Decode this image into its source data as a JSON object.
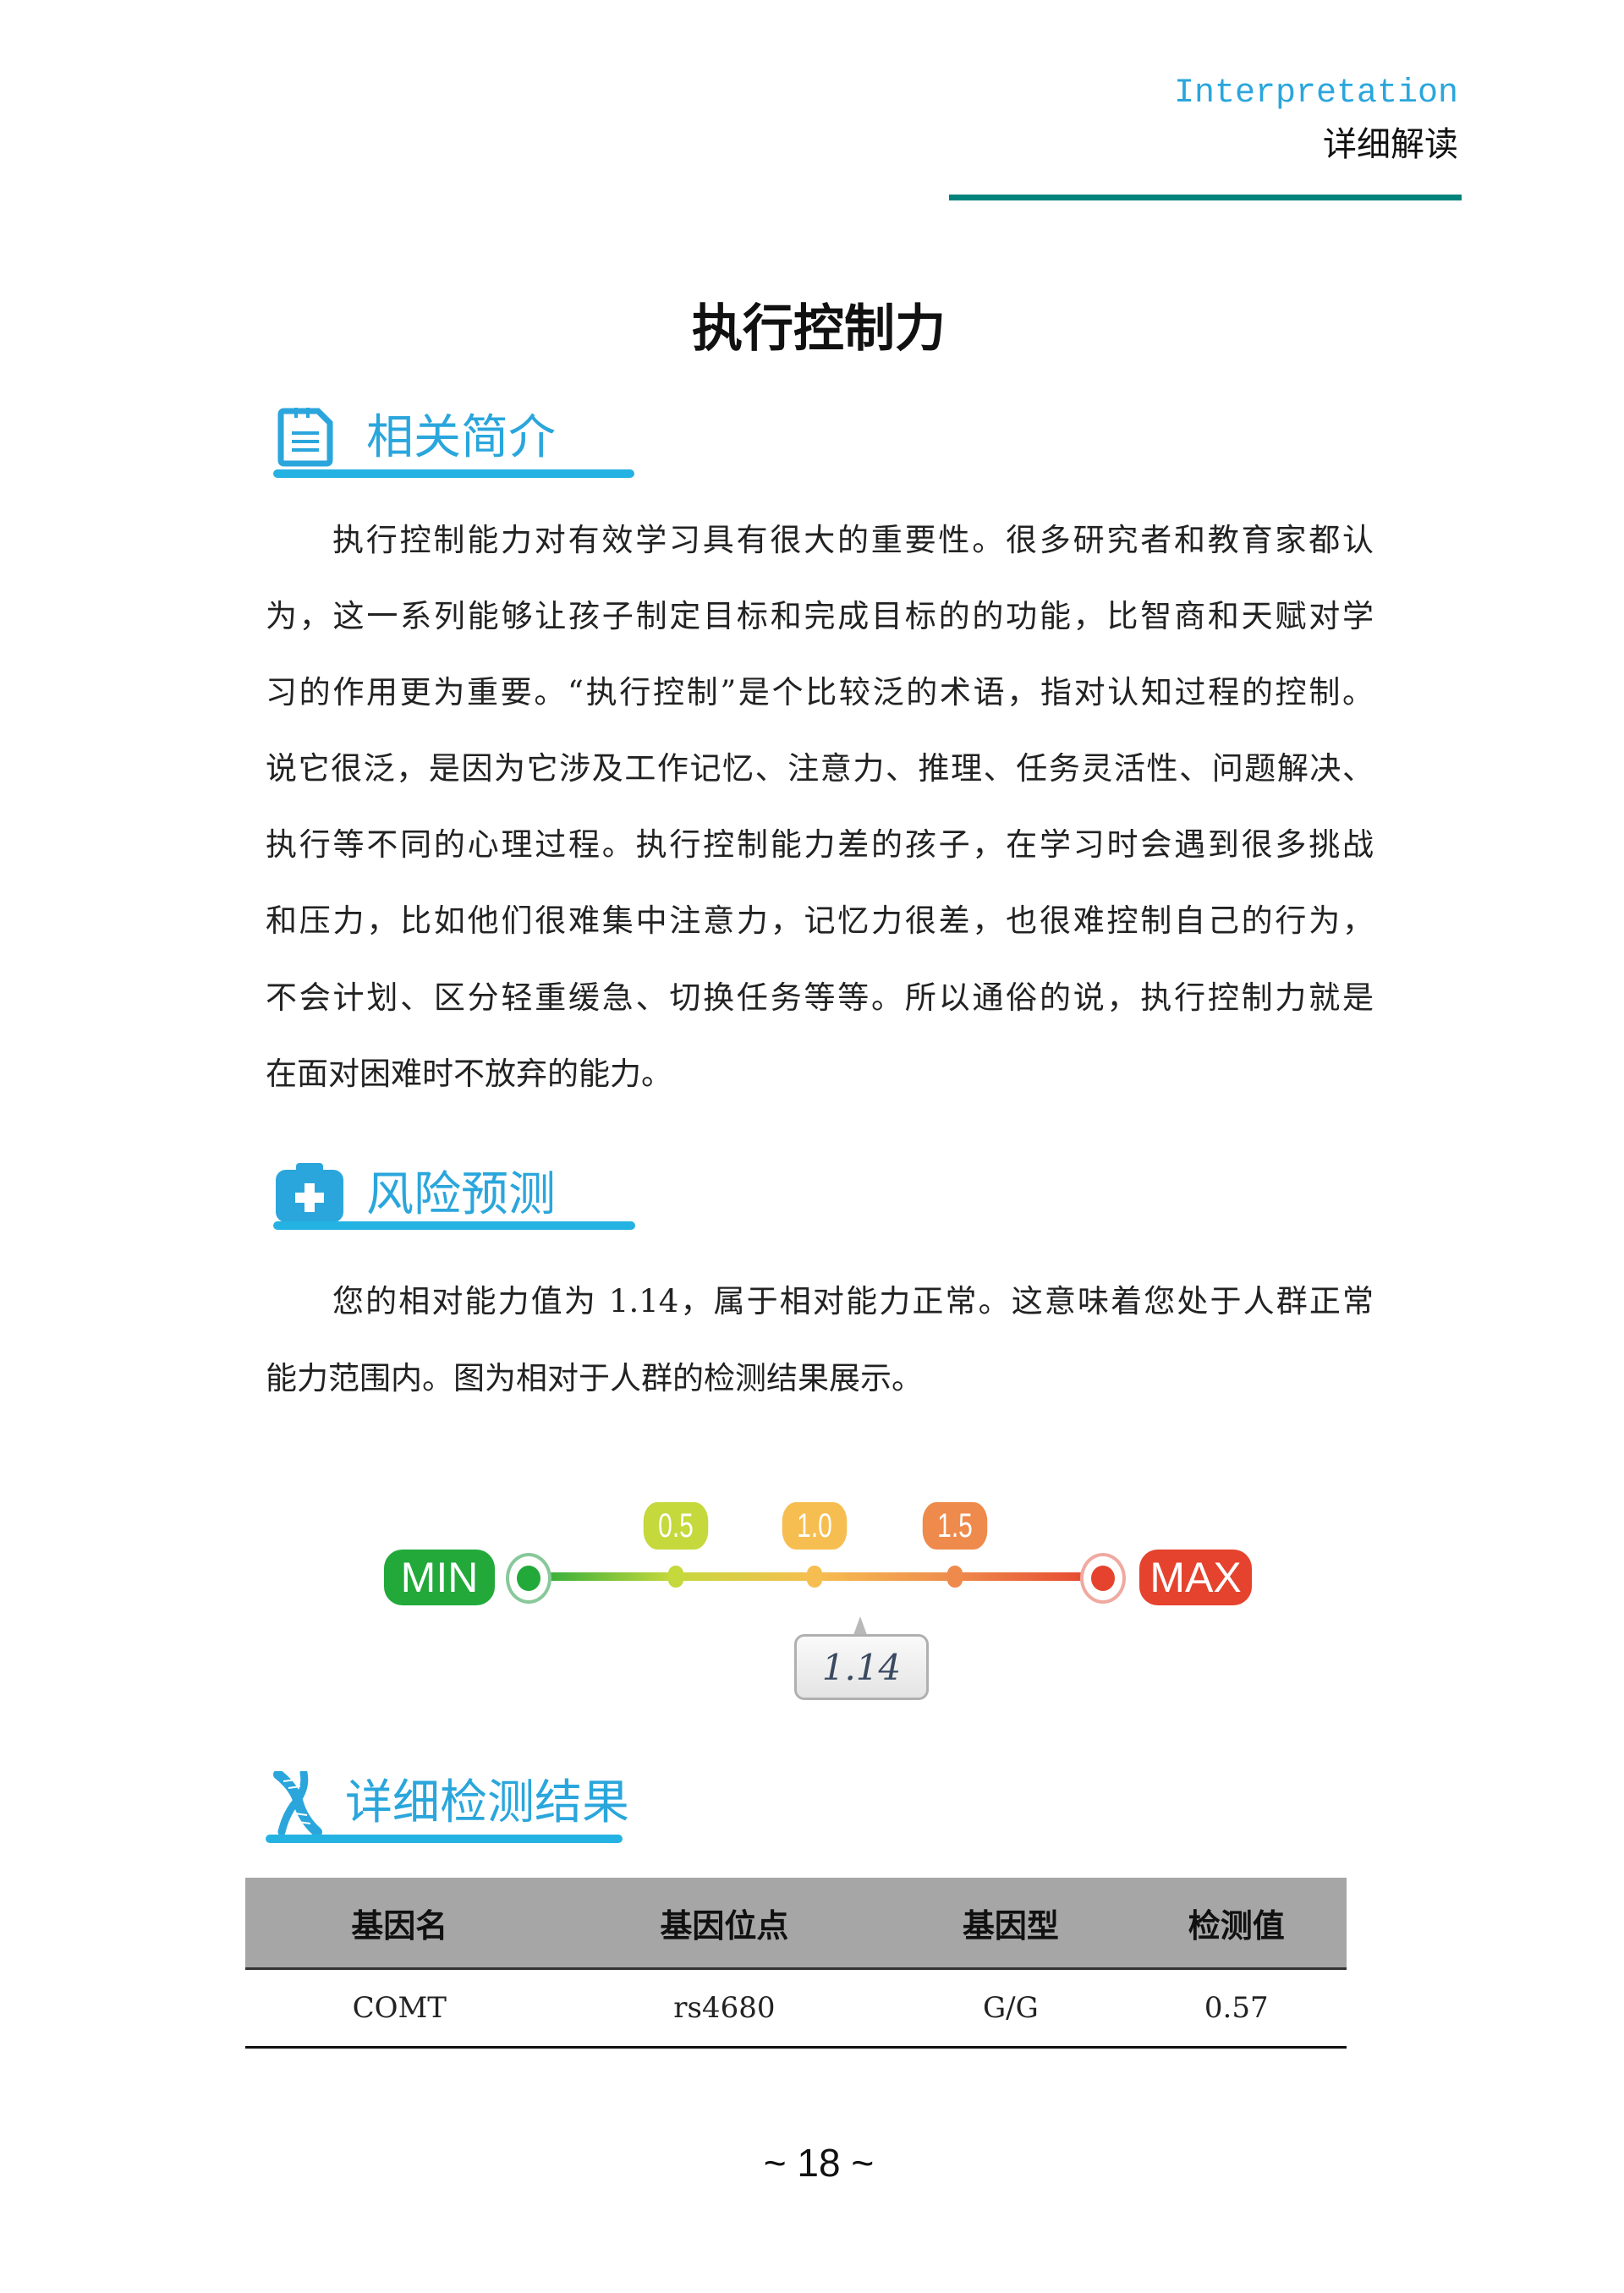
{
  "header": {
    "english": "Interpretation",
    "chinese": "详细解读",
    "accent": "#00827a"
  },
  "title": "执行控制力",
  "sections": {
    "intro": {
      "heading": "相关简介",
      "icon": "document-icon",
      "lines": [
        "执行控制能力对有效学习具有很大的重要性。很多研究者和教育家都认",
        "为，这一系列能够让孩子制定目标和完成目标的的功能，比智商和天赋对学",
        "习的作用更为重要。“执行控制”是个比较泛的术语，指对认知过程的控制。",
        "说它很泛，是因为它涉及工作记忆、注意力、推理、任务灵活性、问题解决、",
        "执行等不同的心理过程。执行控制能力差的孩子，在学习时会遇到很多挑战",
        "和压力，比如他们很难集中注意力，记忆力很差，也很难控制自己的行为，",
        "不会计划、区分轻重缓急、切换任务等等。所以通俗的说，执行控制力就是",
        "在面对困难时不放弃的能力。"
      ]
    },
    "risk": {
      "heading": "风险预测",
      "icon": "medical-kit-icon",
      "lines": [
        "您的相对能力值为 1.14，属于相对能力正常。这意味着您处于人群正常",
        "能力范围内。图为相对于人群的检测结果展示。"
      ]
    },
    "results": {
      "heading": "详细检测结果",
      "icon": "dna-icon"
    }
  },
  "gauge": {
    "min_label": "MIN",
    "max_label": "MAX",
    "ticks": [
      {
        "label": "0.5",
        "color": "#c5d83c"
      },
      {
        "label": "1.0",
        "color": "#f6be50"
      },
      {
        "label": "1.5",
        "color": "#ee8a4c"
      }
    ],
    "value": "1.14",
    "min_color": "#22a93a",
    "max_color": "#e5432e"
  },
  "table": {
    "headers": [
      "基因名",
      "基因位点",
      "基因型",
      "检测值"
    ],
    "rows": [
      [
        "COMT",
        "rs4680",
        "G/G",
        "0.57"
      ]
    ]
  },
  "page_number": "~ 18 ~"
}
